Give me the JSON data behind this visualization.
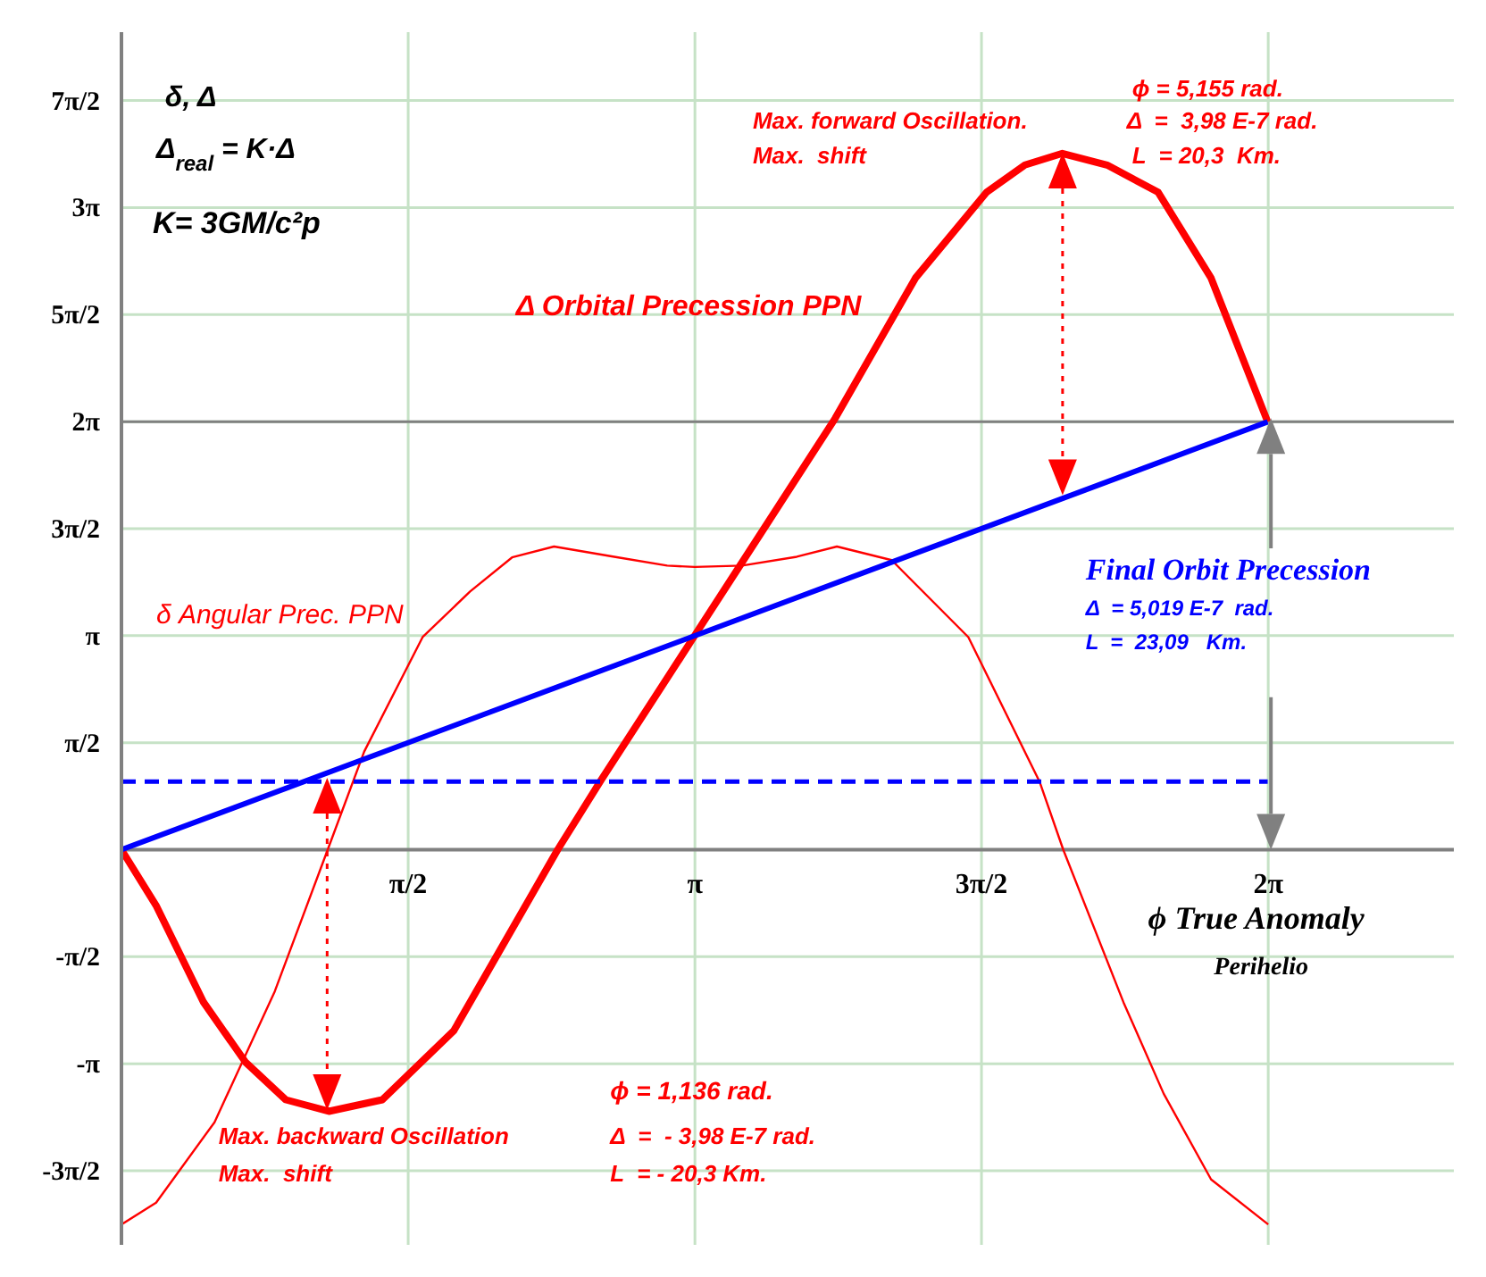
{
  "chart_data": {
    "type": "line",
    "xlabel": "ϕ  True Anomaly",
    "xlim": [
      0,
      7.3
    ],
    "xticks": [
      {
        "value": 1.571,
        "label": "π/2"
      },
      {
        "value": 3.142,
        "label": "π"
      },
      {
        "value": 4.712,
        "label": "3π/2"
      },
      {
        "value": 6.283,
        "label": "2π"
      }
    ],
    "ylim": [
      -5.8,
      12
    ],
    "yticks": [
      {
        "value": -4.712,
        "label": "-3π/2"
      },
      {
        "value": -3.142,
        "label": "-π"
      },
      {
        "value": -1.571,
        "label": "-π/2"
      },
      {
        "value": 1.571,
        "label": "π/2"
      },
      {
        "value": 3.142,
        "label": "π"
      },
      {
        "value": 4.712,
        "label": "3π/2"
      },
      {
        "value": 6.283,
        "label": "2π"
      },
      {
        "value": 7.854,
        "label": "5π/2"
      },
      {
        "value": 9.425,
        "label": "3π"
      },
      {
        "value": 10.996,
        "label": "7π/2"
      }
    ],
    "grid": true,
    "marker": "none",
    "ref_lines": [
      {
        "axis": "y",
        "value": 6.283,
        "color": "#808080"
      }
    ],
    "series": [
      {
        "name": "Δ Orbital Precession  PPN",
        "color": "#ff0000",
        "x": [
          0,
          0.19,
          0.45,
          0.68,
          0.9,
          1.136,
          1.43,
          1.82,
          2.39,
          2.63,
          3.14,
          3.5,
          3.91,
          4.35,
          4.74,
          4.95,
          5.155,
          5.4,
          5.68,
          5.97,
          6.28
        ],
        "values": [
          0,
          -0.82,
          -2.24,
          -3.12,
          -3.67,
          -3.84,
          -3.67,
          -2.66,
          0,
          1.03,
          3.14,
          4.63,
          6.33,
          8.39,
          9.65,
          10.05,
          10.22,
          10.05,
          9.65,
          8.39,
          6.28
        ]
      },
      {
        "name": "δ Angular Prec.  PPN",
        "color": "#ff0000",
        "x": [
          0,
          0.19,
          0.51,
          0.84,
          1.13,
          1.33,
          1.65,
          1.91,
          2.14,
          2.37,
          2.7,
          2.99,
          3.142,
          3.4,
          3.7,
          3.92,
          4.22,
          4.64,
          5.03,
          5.16,
          5.49,
          5.71,
          5.97,
          6.283
        ],
        "values": [
          -5.5,
          -5.18,
          -4.0,
          -2.08,
          0,
          1.44,
          3.12,
          3.79,
          4.29,
          4.45,
          4.3,
          4.17,
          4.15,
          4.17,
          4.3,
          4.45,
          4.25,
          3.12,
          1.0,
          0,
          -2.24,
          -3.58,
          -4.84,
          -5.5
        ]
      },
      {
        "color": "#0000ff",
        "x": [
          0,
          6.28
        ],
        "values": [
          0,
          6.28
        ]
      },
      {
        "color": "#0000ff",
        "x": [
          0,
          6.28
        ],
        "values": [
          1.0,
          1.0
        ],
        "line_style": "dashed"
      }
    ],
    "annotations": [
      "δ, Δ",
      "Δ$_{real}$ = K·Δ",
      "K= 3GM/c²p",
      "ϕ = 5,155 rad.",
      "Max. forward Oscillation.",
      "Δ  =  3,98 E-7 rad.",
      "Max.  shift",
      "L  = 20,3  Km.",
      "Final Orbit Precession",
      "Δ  = 5,019 E-7  rad.",
      "L  =  23,09   Km.",
      "ϕ = 1,136 rad.",
      "Max. backward Oscillation",
      "Δ  =  - 3,98 E-7 rad.",
      "Max.  shift",
      "L  = - 20,3 Km.",
      "Perihelio"
    ]
  }
}
